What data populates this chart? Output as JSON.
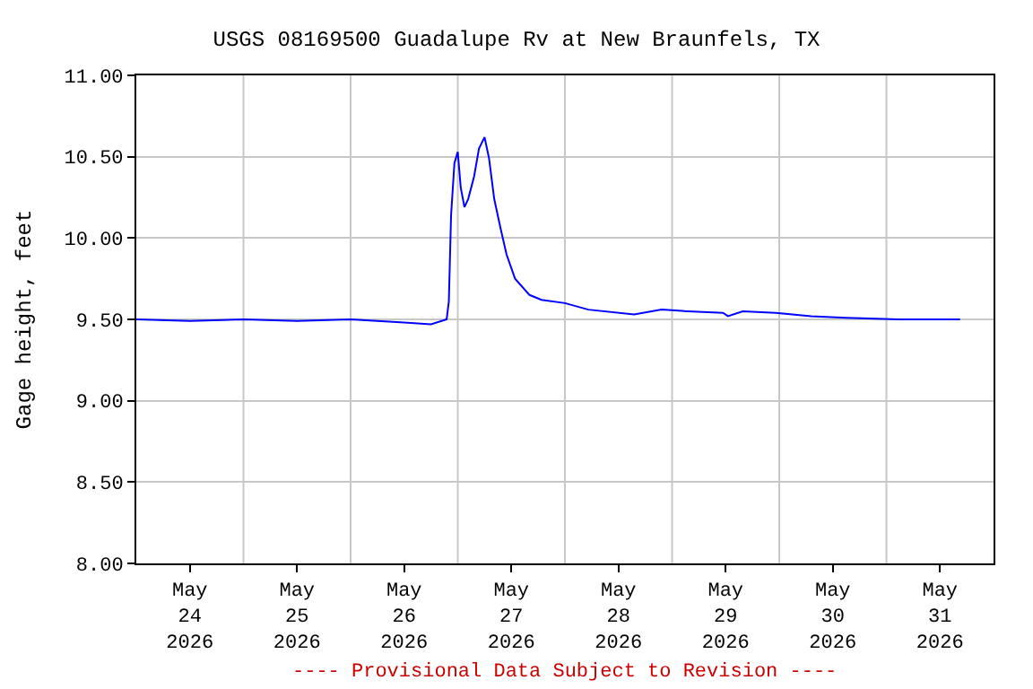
{
  "chart_data": {
    "type": "line",
    "title": "USGS 08169500 Guadalupe Rv at New Braunfels, TX",
    "ylabel": "Gage height, feet",
    "annotations": [
      "---- Provisional Data Subject to Revision ----"
    ],
    "x": [
      "2026-05-24T00:00",
      "2026-05-24T12:00",
      "2026-05-25T00:00",
      "2026-05-25T12:00",
      "2026-05-26T00:00",
      "2026-05-26T12:00",
      "2026-05-26T18:00",
      "2026-05-26T21:30",
      "2026-05-26T22:00",
      "2026-05-26T22:30",
      "2026-05-26T23:15",
      "2026-05-27T00:00",
      "2026-05-27T00:40",
      "2026-05-27T01:30",
      "2026-05-27T02:20",
      "2026-05-27T03:40",
      "2026-05-27T04:45",
      "2026-05-27T06:00",
      "2026-05-27T07:00",
      "2026-05-27T08:10",
      "2026-05-27T09:35",
      "2026-05-27T10:55",
      "2026-05-27T12:50",
      "2026-05-27T16:05",
      "2026-05-27T18:45",
      "2026-05-28T00:00",
      "2026-05-28T05:15",
      "2026-05-28T15:30",
      "2026-05-28T21:40",
      "2026-05-29T03:30",
      "2026-05-29T11:25",
      "2026-05-29T12:30",
      "2026-05-29T15:50",
      "2026-05-29T23:15",
      "2026-05-30T07:10",
      "2026-05-30T15:00",
      "2026-05-31T02:45",
      "2026-05-31T16:30"
    ],
    "series": [
      {
        "color": "#0000ff",
        "values": [
          9.5,
          9.49,
          9.5,
          9.49,
          9.5,
          9.48,
          9.47,
          9.5,
          9.61,
          10.14,
          10.46,
          10.53,
          10.31,
          10.19,
          10.24,
          10.38,
          10.55,
          10.62,
          10.49,
          10.24,
          10.06,
          9.9,
          9.75,
          9.65,
          9.62,
          9.6,
          9.56,
          9.53,
          9.56,
          9.55,
          9.54,
          9.52,
          9.55,
          9.54,
          9.52,
          9.51,
          9.5,
          9.5
        ]
      }
    ],
    "xlim": [
      "2026-05-24T00:00",
      "2026-06-01T00:00"
    ],
    "xticks": [
      {
        "value": "2026-05-24T12:00",
        "label": "May\n24\n2026"
      },
      {
        "value": "2026-05-25T12:00",
        "label": "May\n25\n2026"
      },
      {
        "value": "2026-05-26T12:00",
        "label": "May\n26\n2026"
      },
      {
        "value": "2026-05-27T12:00",
        "label": "May\n27\n2026"
      },
      {
        "value": "2026-05-28T12:00",
        "label": "May\n28\n2026"
      },
      {
        "value": "2026-05-29T12:00",
        "label": "May\n29\n2026"
      },
      {
        "value": "2026-05-30T12:00",
        "label": "May\n30\n2026"
      },
      {
        "value": "2026-05-31T12:00",
        "label": "May\n31\n2026"
      },
      {
        "value": "2026-05-25T00:00",
        "label": null
      },
      {
        "value": "2026-05-26T00:00",
        "label": null
      },
      {
        "value": "2026-05-27T00:00",
        "label": null
      },
      {
        "value": "2026-05-28T00:00",
        "label": null
      },
      {
        "value": "2026-05-29T00:00",
        "label": null
      },
      {
        "value": "2026-05-30T00:00",
        "label": null
      },
      {
        "value": "2026-05-31T00:00",
        "label": null
      }
    ],
    "ylim": [
      8.0,
      11.0
    ],
    "yticks": [
      {
        "value": 8.0,
        "label": "8.00"
      },
      {
        "value": 8.5,
        "label": "8.50"
      },
      {
        "value": 9.0,
        "label": "9.00"
      },
      {
        "value": 9.5,
        "label": "9.50"
      },
      {
        "value": 10.0,
        "label": "10.00"
      },
      {
        "value": 10.5,
        "label": "10.50"
      },
      {
        "value": 11.0,
        "label": "11.00"
      }
    ],
    "grid": true,
    "marker": "none",
    "line_style": "solid"
  }
}
